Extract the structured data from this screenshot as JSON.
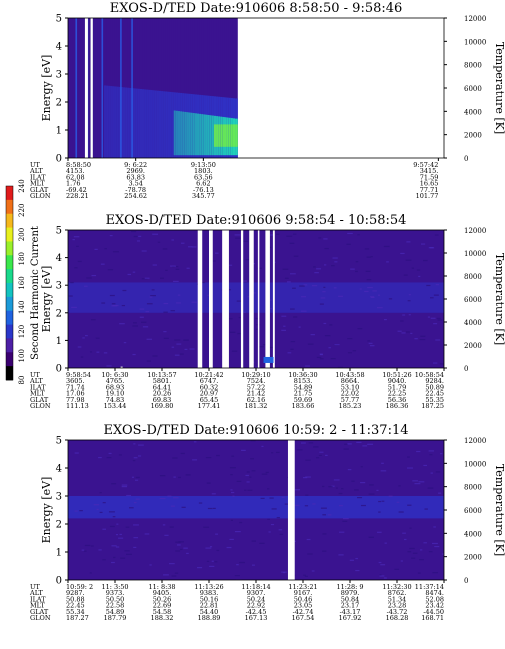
{
  "chart_data": [
    {
      "type": "heatmap",
      "title": "EXOS-D/TED   Date:910606  8:58:50 - 9:58:46",
      "ylabel": "Energy [eV]",
      "y2label": "Temperature [K]",
      "ylim": [
        0,
        5
      ],
      "y2lim": [
        0,
        12000
      ],
      "yticks": [
        "0",
        "1",
        "2",
        "3",
        "4",
        "5"
      ],
      "y2ticks": [
        "0",
        "2000",
        "4000",
        "6000",
        "8000",
        "10000",
        "12000"
      ],
      "data_end_fraction": 0.45,
      "orbit_row_labels": [
        "UT",
        "ALT",
        "ILAT",
        "MLT",
        "GLAT",
        "GLON"
      ],
      "orbit_columns": [
        {
          "label": "UT_cols",
          "values": [
            "8:58:50",
            "9: 6:22",
            "9:13:50",
            "9:57:42"
          ]
        },
        {
          "label": "ALT",
          "values": [
            "4153.",
            "2969.",
            "1803.",
            "3415."
          ]
        },
        {
          "label": "ILAT",
          "values": [
            "62.08",
            "63.83",
            "63.56",
            "71.59"
          ]
        },
        {
          "label": "MLT",
          "values": [
            "1.76",
            "3.54",
            "6.62",
            "16.65"
          ]
        },
        {
          "label": "GLAT",
          "values": [
            "-69.42",
            "-78.78",
            "-76.13",
            "77.71"
          ]
        },
        {
          "label": "GLON",
          "values": [
            "228.21",
            "254.62",
            "345.77",
            "101.77"
          ]
        }
      ],
      "orbit_positions": [
        0.0,
        0.18,
        0.36,
        0.985
      ]
    },
    {
      "type": "heatmap",
      "title": "EXOS-D/TED   Date:910606  9:58:54 - 10:58:54",
      "ylabel": "Energy [eV]",
      "y2label": "Temperature [K]",
      "ylim": [
        0,
        5
      ],
      "y2lim": [
        0,
        12000
      ],
      "yticks": [
        "0",
        "1",
        "2",
        "3",
        "4",
        "5"
      ],
      "y2ticks": [
        "0",
        "2000",
        "4000",
        "6000",
        "8000",
        "10000",
        "12000"
      ],
      "orbit_row_labels": [
        "UT",
        "ALT",
        "ILAT",
        "MLT",
        "GLAT",
        "GLON"
      ],
      "orbit_columns": [
        {
          "label": "UT_cols",
          "values": [
            "9:58:54",
            "10: 6:30",
            "10:13:57",
            "10:21:42",
            "10:29:10",
            "10:36:30",
            "10:43:58",
            "10:51:26",
            "10:58:54"
          ]
        },
        {
          "label": "ALT",
          "values": [
            "3605.",
            "4765.",
            "5801.",
            "6747.",
            "7524.",
            "8153.",
            "8664.",
            "9040.",
            "9284."
          ]
        },
        {
          "label": "ILAT",
          "values": [
            "71.74",
            "68.93",
            "64.41",
            "60.32",
            "57.22",
            "54.89",
            "53.10",
            "51.79",
            "50.89"
          ]
        },
        {
          "label": "MLT",
          "values": [
            "17.06",
            "19.10",
            "20.26",
            "20.97",
            "21.42",
            "21.75",
            "22.02",
            "22.25",
            "22.45"
          ]
        },
        {
          "label": "GLAT",
          "values": [
            "77.98",
            "74.83",
            "69.83",
            "65.45",
            "62.16",
            "59.69",
            "57.77",
            "56.36",
            "55.35"
          ]
        },
        {
          "label": "GLON",
          "values": [
            "111.13",
            "153.44",
            "169.80",
            "177.41",
            "181.32",
            "183.66",
            "185.23",
            "186.36",
            "187.25"
          ]
        }
      ]
    },
    {
      "type": "heatmap",
      "title": "EXOS-D/TED   Date:910606  10:59: 2 - 11:37:14",
      "ylabel": "Energy [eV]",
      "y2label": "Temperature [K]",
      "ylim": [
        0,
        5
      ],
      "y2lim": [
        0,
        12000
      ],
      "yticks": [
        "0",
        "1",
        "2",
        "3",
        "4",
        "5"
      ],
      "y2ticks": [
        "0",
        "2000",
        "4000",
        "6000",
        "8000",
        "10000",
        "12000"
      ],
      "orbit_row_labels": [
        "UT",
        "ALT",
        "ILAT",
        "MLT",
        "GLAT",
        "GLON"
      ],
      "orbit_columns": [
        {
          "label": "UT_cols",
          "values": [
            "10:59: 2",
            "11: 3:50",
            "11: 8:38",
            "11:13:26",
            "11:18:14",
            "11:23:21",
            "11:28: 9",
            "11:32:30",
            "11:37:14"
          ]
        },
        {
          "label": "ALT",
          "values": [
            "9287.",
            "9373.",
            "9405.",
            "9383.",
            "9307.",
            "9167.",
            "8979.",
            "8762.",
            "8474."
          ]
        },
        {
          "label": "ILAT",
          "values": [
            "50.88",
            "50.50",
            "50.26",
            "50.16",
            "50.24",
            "50.46",
            "50.84",
            "51.34",
            "52.08"
          ]
        },
        {
          "label": "MLT",
          "values": [
            "22.45",
            "22.58",
            "22.69",
            "22.81",
            "22.92",
            "23.05",
            "23.17",
            "23.28",
            "23.42"
          ]
        },
        {
          "label": "GLAT",
          "values": [
            "55.34",
            "54.89",
            "54.58",
            "54.40",
            "-42.45",
            "-42.74",
            "-43.17",
            "-43.72",
            "-44.50"
          ]
        },
        {
          "label": "GLON",
          "values": [
            "187.27",
            "187.79",
            "188.32",
            "188.89",
            "167.13",
            "167.54",
            "167.92",
            "168.28",
            "168.71"
          ]
        }
      ]
    }
  ],
  "colorbar": {
    "label": "Second Harmonic Current",
    "ticks": [
      "80",
      "100",
      "120",
      "140",
      "160",
      "180",
      "200",
      "220",
      "240"
    ],
    "colors": [
      "#000000",
      "#3a0070",
      "#4d1fa5",
      "#2a36c9",
      "#1f62e0",
      "#1c9ad8",
      "#13c3c0",
      "#19d98c",
      "#3ae84c",
      "#9af02a",
      "#e8f01e",
      "#f5b81c",
      "#f07018",
      "#e01b1b"
    ]
  },
  "colors": {
    "background": "#ffffff",
    "heat_base": "#3a1390",
    "heat_band": "#2f33c8",
    "heat_bright": "#1fd6b8",
    "heat_hot": "#7cf03a"
  }
}
